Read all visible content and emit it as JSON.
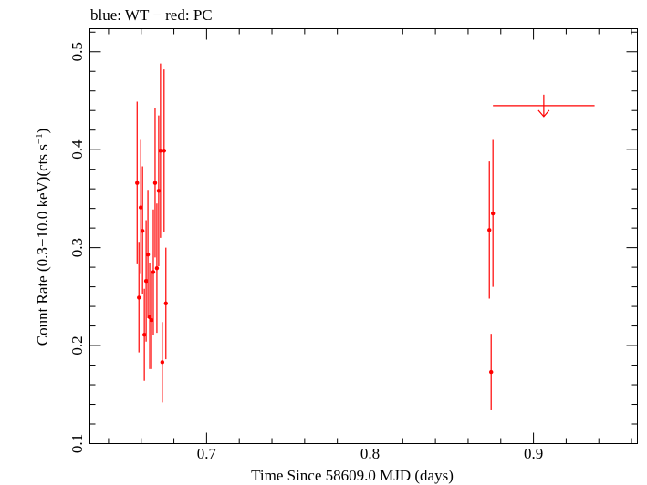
{
  "chart_data": {
    "type": "scatter",
    "title": "blue: WT − red: PC",
    "xlabel": "Time Since 58609.0 MJD (days)",
    "ylabel_main": "Count Rate (0.3−10.0 keV)(cts s",
    "ylabel_sup": "−1",
    "ylabel_close": ")",
    "xlim": [
      0.6286,
      0.9636
    ],
    "ylim": [
      0.1,
      0.5235
    ],
    "xticks": [
      {
        "value": 0.7,
        "label": "0.7"
      },
      {
        "value": 0.8,
        "label": "0.8"
      },
      {
        "value": 0.9,
        "label": "0.9"
      }
    ],
    "yticks": [
      {
        "value": 0.1,
        "label": "0.1"
      },
      {
        "value": 0.2,
        "label": "0.2"
      },
      {
        "value": 0.3,
        "label": "0.3"
      },
      {
        "value": 0.4,
        "label": "0.4"
      },
      {
        "value": 0.5,
        "label": "0.5"
      }
    ],
    "series": [
      {
        "color": "#ff0000",
        "points": [
          {
            "x": 0.6575,
            "y": 0.366,
            "ylo": 0.283,
            "yhi": 0.449
          },
          {
            "x": 0.6586,
            "y": 0.249,
            "ylo": 0.193,
            "yhi": 0.305
          },
          {
            "x": 0.6597,
            "y": 0.341,
            "ylo": 0.273,
            "yhi": 0.41
          },
          {
            "x": 0.6608,
            "y": 0.317,
            "ylo": 0.253,
            "yhi": 0.383
          },
          {
            "x": 0.6619,
            "y": 0.211,
            "ylo": 0.164,
            "yhi": 0.258
          },
          {
            "x": 0.663,
            "y": 0.266,
            "ylo": 0.204,
            "yhi": 0.328
          },
          {
            "x": 0.6641,
            "y": 0.293,
            "ylo": 0.228,
            "yhi": 0.359
          },
          {
            "x": 0.6652,
            "y": 0.229,
            "ylo": 0.176,
            "yhi": 0.284
          },
          {
            "x": 0.6663,
            "y": 0.226,
            "ylo": 0.176,
            "yhi": 0.276
          },
          {
            "x": 0.6674,
            "y": 0.275,
            "ylo": 0.211,
            "yhi": 0.339
          },
          {
            "x": 0.6685,
            "y": 0.366,
            "ylo": 0.29,
            "yhi": 0.442
          },
          {
            "x": 0.6696,
            "y": 0.279,
            "ylo": 0.213,
            "yhi": 0.345
          },
          {
            "x": 0.6707,
            "y": 0.358,
            "ylo": 0.281,
            "yhi": 0.435
          },
          {
            "x": 0.6718,
            "y": 0.399,
            "ylo": 0.31,
            "yhi": 0.488
          },
          {
            "x": 0.6729,
            "y": 0.183,
            "ylo": 0.142,
            "yhi": 0.224
          },
          {
            "x": 0.674,
            "y": 0.399,
            "ylo": 0.316,
            "yhi": 0.482
          },
          {
            "x": 0.6751,
            "y": 0.243,
            "ylo": 0.186,
            "yhi": 0.3
          },
          {
            "x": 0.873,
            "y": 0.318,
            "ylo": 0.248,
            "yhi": 0.388
          },
          {
            "x": 0.8741,
            "y": 0.173,
            "ylo": 0.134,
            "yhi": 0.212
          },
          {
            "x": 0.8752,
            "y": 0.335,
            "ylo": 0.26,
            "yhi": 0.41
          }
        ],
        "upper_limits": [
          {
            "x": 0.9063,
            "xlo": 0.8752,
            "xhi": 0.9374,
            "y": 0.445
          }
        ]
      }
    ],
    "grid": false,
    "legend": "none"
  }
}
